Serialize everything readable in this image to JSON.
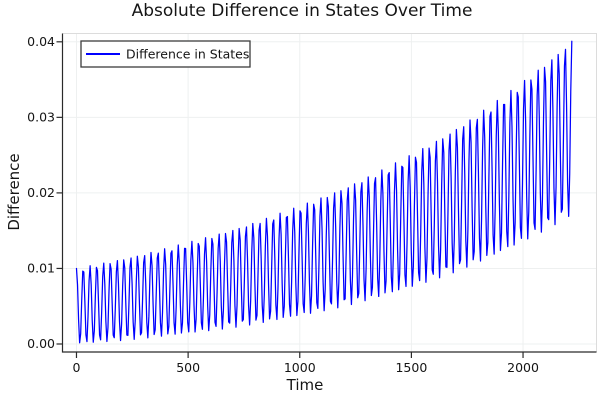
{
  "chart_data": {
    "type": "line",
    "title": "Absolute Difference in States Over Time",
    "xlabel": "Time",
    "ylabel": "Difference",
    "xlim": [
      -62.6,
      2329
    ],
    "ylim": [
      -0.00106,
      0.0411
    ],
    "xticks": [
      0,
      500,
      1000,
      1500,
      2000
    ],
    "xtick_labels": [
      "0",
      "500",
      "1000",
      "1500",
      "2000"
    ],
    "yticks": [
      0,
      0.01,
      0.02,
      0.03,
      0.04
    ],
    "ytick_labels": [
      "0.00",
      "0.01",
      "0.02",
      "0.03",
      "0.04"
    ],
    "grid": true,
    "background": "#ffffff",
    "style": {
      "line_color": "#0000ff",
      "grid_color": "#eef0f0",
      "frame_dark_color": "#2a2a2a",
      "frame_light_color": "#dcdcdc",
      "text_color": "#151515",
      "legend_border_color": "#3c3c3c"
    },
    "legend": {
      "position": "top-left",
      "entries": [
        {
          "label": "Difference in States",
          "color": "#0000ff"
        }
      ]
    },
    "series": [
      {
        "name": "Difference in States",
        "color": "#0000ff",
        "line_width": 1.25,
        "description": "Absolute difference between two oscillating states: fast oscillation (period ~30.4 time units, ~74 cycles) whose upper envelope grows from 0.010 at t=0 to ~0.040 at t~2210 and whose lower envelope stays near 0 until t~600 then rises to ~0.017 by t~2220",
        "model": "d(t) = abs( B0*exp(t/tauB) + M0*exp(t/tauM)*cos(2*pi*t/period) )",
        "params": {
          "B0": 0.005,
          "tauB": 1270,
          "M0": 0.005,
          "tauM": 2650,
          "period": 30.4,
          "t_start": 0,
          "t_end": 2223,
          "dt": 4.7
        },
        "start_value": 0.01,
        "oscillation_period_time_units": 30.4,
        "upper_envelope": {
          "t": [
            0,
            500,
            1000,
            1500,
            2000,
            2208
          ],
          "value": [
            0.01,
            0.0135,
            0.0183,
            0.0251,
            0.0348,
            0.04
          ]
        },
        "lower_envelope": {
          "t": [
            0,
            500,
            1000,
            1500,
            2000,
            2220
          ],
          "value": [
            0.0,
            0.0014,
            0.0037,
            0.0075,
            0.0135,
            0.0172
          ]
        }
      }
    ]
  }
}
